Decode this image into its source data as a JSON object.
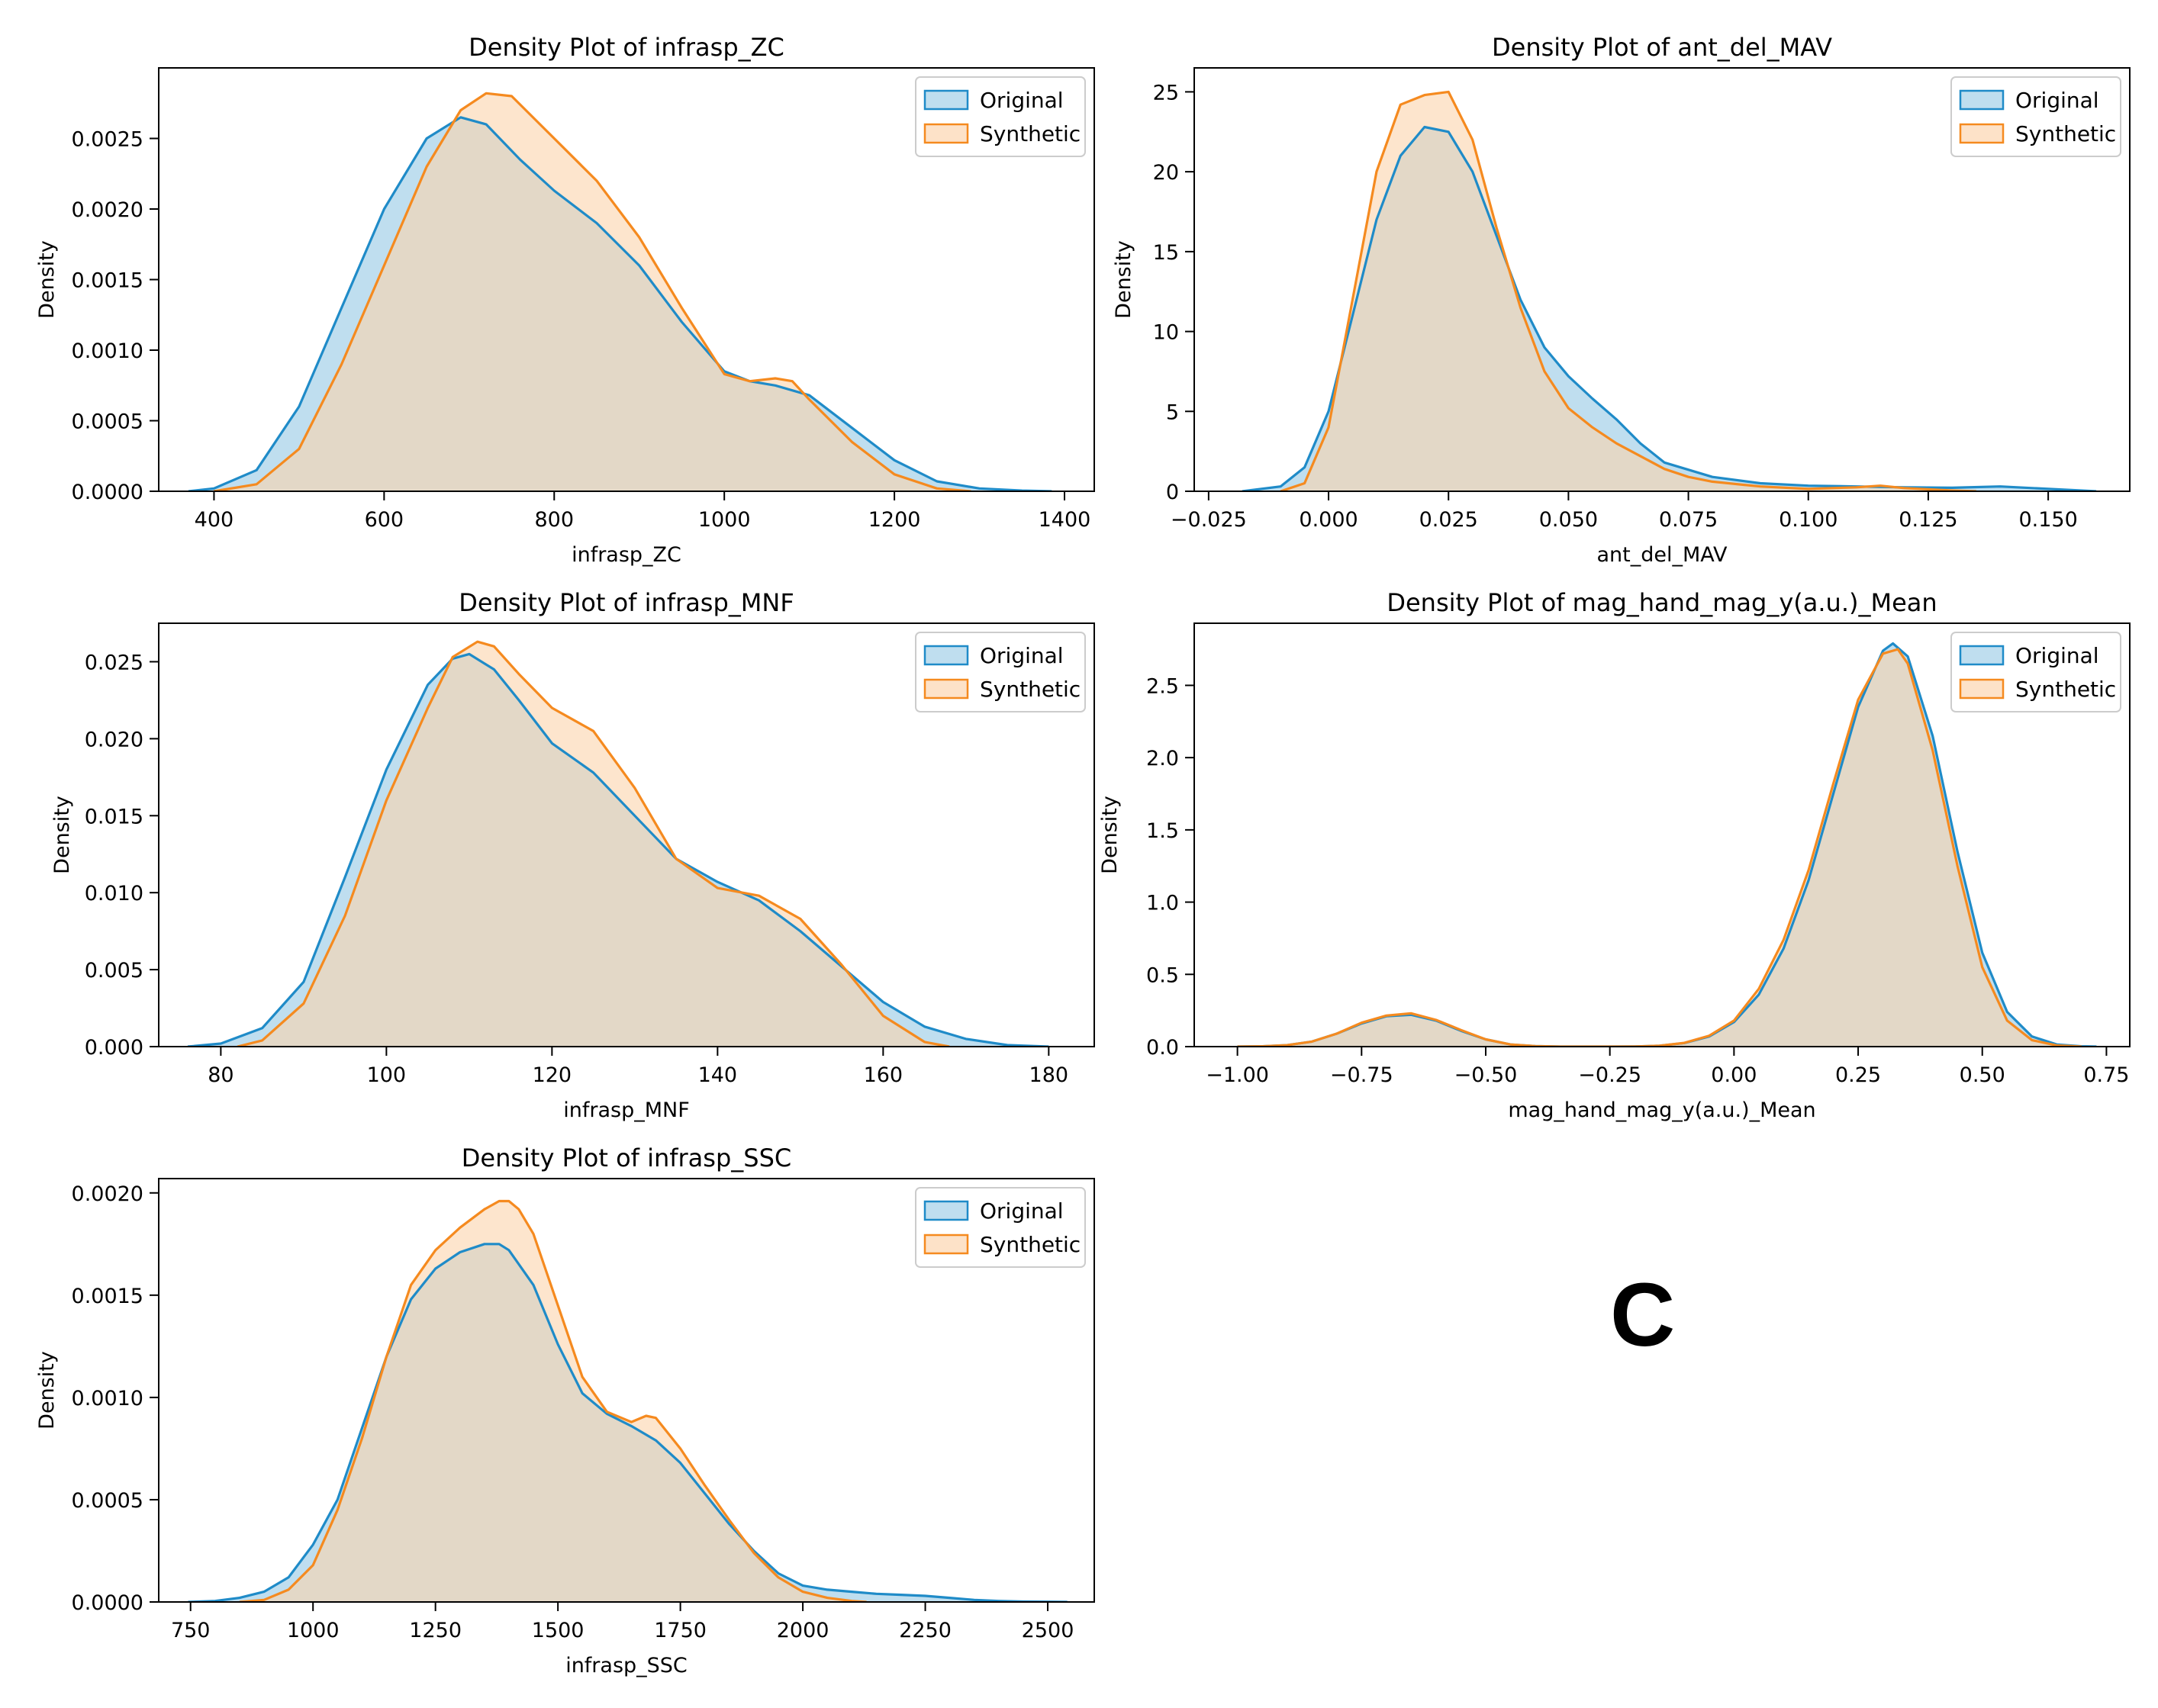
{
  "figure": {
    "panel_label": "C",
    "colors": {
      "original": "#1f8bc8",
      "synthetic": "#f58a1f",
      "original_fill": "#a9d3ea",
      "synthetic_fill": "#fcd3ab",
      "overlap_fill": "#d9c1b2"
    }
  },
  "chart_data": [
    {
      "id": "c1",
      "type": "area",
      "title": "Density Plot of infrasp_ZC",
      "xlabel": "infrasp_ZC",
      "ylabel": "Density",
      "xlim": [
        335,
        1435
      ],
      "ylim": [
        0,
        0.003
      ],
      "xticks": [
        400,
        600,
        800,
        1000,
        1200,
        1400
      ],
      "xtick_labels": [
        "400",
        "600",
        "800",
        "1000",
        "1200",
        "1400"
      ],
      "yticks": [
        0,
        0.0005,
        0.001,
        0.0015,
        0.002,
        0.0025
      ],
      "ytick_labels": [
        "0.0000",
        "0.0005",
        "0.0010",
        "0.0015",
        "0.0020",
        "0.0025"
      ],
      "legend": {
        "position": "top-right",
        "entries": [
          "Original",
          "Synthetic"
        ]
      },
      "series": [
        {
          "name": "Original",
          "x": [
            370,
            400,
            450,
            500,
            550,
            600,
            650,
            690,
            720,
            760,
            800,
            850,
            900,
            950,
            1000,
            1030,
            1060,
            1100,
            1150,
            1200,
            1250,
            1300,
            1350,
            1385
          ],
          "values": [
            0,
            2e-05,
            0.00015,
            0.0006,
            0.0013,
            0.002,
            0.0025,
            0.00265,
            0.0026,
            0.00235,
            0.00213,
            0.0019,
            0.0016,
            0.0012,
            0.00085,
            0.00078,
            0.00075,
            0.00068,
            0.00045,
            0.00022,
            7e-05,
            2e-05,
            5e-06,
            0
          ]
        },
        {
          "name": "Synthetic",
          "x": [
            400,
            450,
            500,
            550,
            600,
            650,
            690,
            720,
            750,
            800,
            850,
            900,
            950,
            1000,
            1030,
            1060,
            1080,
            1100,
            1150,
            1200,
            1250,
            1290
          ],
          "values": [
            0,
            5e-05,
            0.0003,
            0.0009,
            0.0016,
            0.0023,
            0.0027,
            0.00282,
            0.0028,
            0.0025,
            0.0022,
            0.0018,
            0.0013,
            0.00083,
            0.00078,
            0.0008,
            0.00078,
            0.00065,
            0.00035,
            0.00012,
            2e-05,
            0
          ]
        }
      ]
    },
    {
      "id": "c2",
      "type": "area",
      "title": "Density Plot of ant_del_MAV",
      "xlabel": "ant_del_MAV",
      "ylabel": "Density",
      "xlim": [
        -0.028,
        0.167
      ],
      "ylim": [
        0,
        26.5
      ],
      "xticks": [
        -0.025,
        0,
        0.025,
        0.05,
        0.075,
        0.1,
        0.125,
        0.15
      ],
      "xtick_labels": [
        "−0.025",
        "0.000",
        "0.025",
        "0.050",
        "0.075",
        "0.100",
        "0.125",
        "0.150"
      ],
      "yticks": [
        0,
        5,
        10,
        15,
        20,
        25
      ],
      "ytick_labels": [
        "0",
        "5",
        "10",
        "15",
        "20",
        "25"
      ],
      "legend": {
        "position": "top-right",
        "entries": [
          "Original",
          "Synthetic"
        ]
      },
      "series": [
        {
          "name": "Original",
          "x": [
            -0.018,
            -0.01,
            -0.005,
            0,
            0.005,
            0.01,
            0.015,
            0.02,
            0.025,
            0.03,
            0.035,
            0.04,
            0.045,
            0.05,
            0.055,
            0.06,
            0.065,
            0.07,
            0.08,
            0.09,
            0.1,
            0.11,
            0.12,
            0.13,
            0.14,
            0.15,
            0.16
          ],
          "values": [
            0,
            0.3,
            1.5,
            5,
            11,
            17,
            21,
            22.8,
            22.5,
            20,
            16,
            12,
            9,
            7.2,
            5.8,
            4.5,
            3,
            1.8,
            0.9,
            0.5,
            0.35,
            0.3,
            0.25,
            0.22,
            0.3,
            0.15,
            0
          ]
        },
        {
          "name": "Synthetic",
          "x": [
            -0.01,
            -0.005,
            0,
            0.005,
            0.01,
            0.015,
            0.02,
            0.025,
            0.03,
            0.035,
            0.04,
            0.045,
            0.05,
            0.055,
            0.06,
            0.065,
            0.07,
            0.075,
            0.08,
            0.09,
            0.1,
            0.11,
            0.115,
            0.12,
            0.13,
            0.135
          ],
          "values": [
            0,
            0.5,
            4,
            12,
            20,
            24.2,
            24.8,
            25,
            22,
            16.5,
            11.5,
            7.5,
            5.2,
            4,
            3,
            2.2,
            1.4,
            0.9,
            0.6,
            0.3,
            0.15,
            0.25,
            0.35,
            0.2,
            0.05,
            0
          ]
        }
      ]
    },
    {
      "id": "c3",
      "type": "area",
      "title": "Density Plot of infrasp_MNF",
      "xlabel": "infrasp_MNF",
      "ylabel": "Density",
      "xlim": [
        72.5,
        185.5
      ],
      "ylim": [
        0,
        0.0275
      ],
      "xticks": [
        80,
        100,
        120,
        140,
        160,
        180
      ],
      "xtick_labels": [
        "80",
        "100",
        "120",
        "140",
        "160",
        "180"
      ],
      "yticks": [
        0,
        0.005,
        0.01,
        0.015,
        0.02,
        0.025
      ],
      "ytick_labels": [
        "0.000",
        "0.005",
        "0.010",
        "0.015",
        "0.020",
        "0.025"
      ],
      "legend": {
        "position": "top-right",
        "entries": [
          "Original",
          "Synthetic"
        ]
      },
      "series": [
        {
          "name": "Original",
          "x": [
            76,
            80,
            85,
            90,
            95,
            100,
            105,
            108,
            110,
            113,
            116,
            120,
            125,
            130,
            135,
            140,
            145,
            150,
            155,
            160,
            165,
            170,
            175,
            180
          ],
          "values": [
            0,
            0.0002,
            0.0012,
            0.0042,
            0.011,
            0.018,
            0.0235,
            0.0252,
            0.0255,
            0.0245,
            0.0225,
            0.0197,
            0.0178,
            0.015,
            0.0122,
            0.0107,
            0.0095,
            0.0075,
            0.0052,
            0.0029,
            0.0013,
            0.0005,
            0.0001,
            0
          ]
        },
        {
          "name": "Synthetic",
          "x": [
            82,
            85,
            90,
            95,
            100,
            105,
            108,
            111,
            113,
            116,
            120,
            125,
            130,
            135,
            140,
            145,
            150,
            155,
            160,
            165,
            168
          ],
          "values": [
            0,
            0.0004,
            0.0028,
            0.0085,
            0.016,
            0.022,
            0.0253,
            0.0263,
            0.026,
            0.0242,
            0.022,
            0.0205,
            0.0168,
            0.0122,
            0.0103,
            0.0098,
            0.0083,
            0.0053,
            0.002,
            0.0003,
            0
          ]
        }
      ]
    },
    {
      "id": "c4",
      "type": "area",
      "title": "Density Plot of mag_hand_mag_y(a.u.)_Mean",
      "xlabel": "mag_hand_mag_y(a.u.)_Mean",
      "ylabel": "Density",
      "xlim": [
        -1.087,
        0.797
      ],
      "ylim": [
        0,
        2.93
      ],
      "xticks": [
        -1,
        -0.75,
        -0.5,
        -0.25,
        0,
        0.25,
        0.5,
        0.75
      ],
      "xtick_labels": [
        "−1.00",
        "−0.75",
        "−0.50",
        "−0.25",
        "0.00",
        "0.25",
        "0.50",
        "0.75"
      ],
      "yticks": [
        0,
        0.5,
        1,
        1.5,
        2,
        2.5
      ],
      "ytick_labels": [
        "0.0",
        "0.5",
        "1.0",
        "1.5",
        "2.0",
        "2.5"
      ],
      "legend": {
        "position": "top-right",
        "entries": [
          "Original",
          "Synthetic"
        ]
      },
      "series": [
        {
          "name": "Original",
          "x": [
            -1.0,
            -0.95,
            -0.9,
            -0.85,
            -0.8,
            -0.75,
            -0.7,
            -0.65,
            -0.6,
            -0.55,
            -0.5,
            -0.45,
            -0.4,
            -0.35,
            -0.3,
            -0.25,
            -0.2,
            -0.15,
            -0.1,
            -0.05,
            0,
            0.05,
            0.1,
            0.15,
            0.2,
            0.25,
            0.3,
            0.32,
            0.35,
            0.4,
            0.45,
            0.5,
            0.55,
            0.6,
            0.65,
            0.7,
            0.73
          ],
          "values": [
            0,
            0.002,
            0.01,
            0.035,
            0.09,
            0.16,
            0.21,
            0.22,
            0.18,
            0.11,
            0.05,
            0.015,
            0.003,
            0,
            0,
            0,
            0.001,
            0.006,
            0.025,
            0.07,
            0.17,
            0.36,
            0.68,
            1.15,
            1.75,
            2.35,
            2.74,
            2.79,
            2.7,
            2.15,
            1.35,
            0.65,
            0.24,
            0.07,
            0.015,
            0.002,
            0
          ]
        },
        {
          "name": "Synthetic",
          "x": [
            -1.0,
            -0.95,
            -0.9,
            -0.85,
            -0.8,
            -0.75,
            -0.7,
            -0.65,
            -0.6,
            -0.55,
            -0.5,
            -0.45,
            -0.4,
            -0.35,
            -0.3,
            -0.25,
            -0.2,
            -0.15,
            -0.1,
            -0.05,
            0,
            0.05,
            0.1,
            0.15,
            0.2,
            0.25,
            0.3,
            0.33,
            0.35,
            0.4,
            0.45,
            0.5,
            0.55,
            0.6,
            0.65,
            0.7
          ],
          "values": [
            0,
            0.002,
            0.01,
            0.035,
            0.09,
            0.165,
            0.215,
            0.23,
            0.185,
            0.115,
            0.05,
            0.015,
            0.003,
            0,
            0,
            0,
            0.001,
            0.006,
            0.026,
            0.075,
            0.18,
            0.4,
            0.74,
            1.22,
            1.82,
            2.4,
            2.72,
            2.75,
            2.65,
            2.05,
            1.25,
            0.55,
            0.18,
            0.045,
            0.008,
            0
          ]
        }
      ]
    },
    {
      "id": "c5",
      "type": "area",
      "title": "Density Plot of infrasp_SSC",
      "xlabel": "infrasp_SSC",
      "ylabel": "Density",
      "xlim": [
        685,
        2595
      ],
      "ylim": [
        0,
        0.00207
      ],
      "xticks": [
        750,
        1000,
        1250,
        1500,
        1750,
        2000,
        2250,
        2500
      ],
      "xtick_labels": [
        "750",
        "1000",
        "1250",
        "1500",
        "1750",
        "2000",
        "2250",
        "2500"
      ],
      "yticks": [
        0,
        0.0005,
        0.001,
        0.0015,
        0.002
      ],
      "ytick_labels": [
        "0.0000",
        "0.0005",
        "0.0010",
        "0.0015",
        "0.0020"
      ],
      "legend": {
        "position": "top-right",
        "entries": [
          "Original",
          "Synthetic"
        ]
      },
      "series": [
        {
          "name": "Original",
          "x": [
            745,
            800,
            850,
            900,
            950,
            1000,
            1050,
            1100,
            1150,
            1200,
            1250,
            1300,
            1350,
            1380,
            1400,
            1450,
            1500,
            1550,
            1600,
            1650,
            1700,
            1750,
            1800,
            1850,
            1900,
            1950,
            2000,
            2050,
            2100,
            2150,
            2200,
            2250,
            2300,
            2350,
            2400,
            2450,
            2500,
            2540
          ],
          "values": [
            0,
            5e-06,
            2e-05,
            5e-05,
            0.00012,
            0.00028,
            0.0005,
            0.00085,
            0.0012,
            0.00148,
            0.00163,
            0.00171,
            0.00175,
            0.00175,
            0.00172,
            0.00155,
            0.00126,
            0.00102,
            0.00092,
            0.00086,
            0.00079,
            0.00068,
            0.00053,
            0.00038,
            0.00025,
            0.00014,
            8e-05,
            6e-05,
            5e-05,
            4e-05,
            3.5e-05,
            3e-05,
            2e-05,
            1e-05,
            5e-06,
            2e-06,
            1e-06,
            0
          ]
        },
        {
          "name": "Synthetic",
          "x": [
            850,
            900,
            950,
            1000,
            1050,
            1100,
            1150,
            1200,
            1250,
            1300,
            1350,
            1380,
            1400,
            1420,
            1450,
            1500,
            1550,
            1600,
            1650,
            1680,
            1700,
            1750,
            1800,
            1850,
            1900,
            1950,
            2000,
            2050,
            2100,
            2130
          ],
          "values": [
            0,
            1e-05,
            6e-05,
            0.00018,
            0.00045,
            0.0008,
            0.0012,
            0.00155,
            0.00172,
            0.00183,
            0.00192,
            0.00196,
            0.00196,
            0.00192,
            0.0018,
            0.00145,
            0.0011,
            0.00093,
            0.00088,
            0.00091,
            0.0009,
            0.00075,
            0.00057,
            0.0004,
            0.00024,
            0.00012,
            5e-05,
            2e-05,
            5e-06,
            0
          ]
        }
      ]
    }
  ]
}
